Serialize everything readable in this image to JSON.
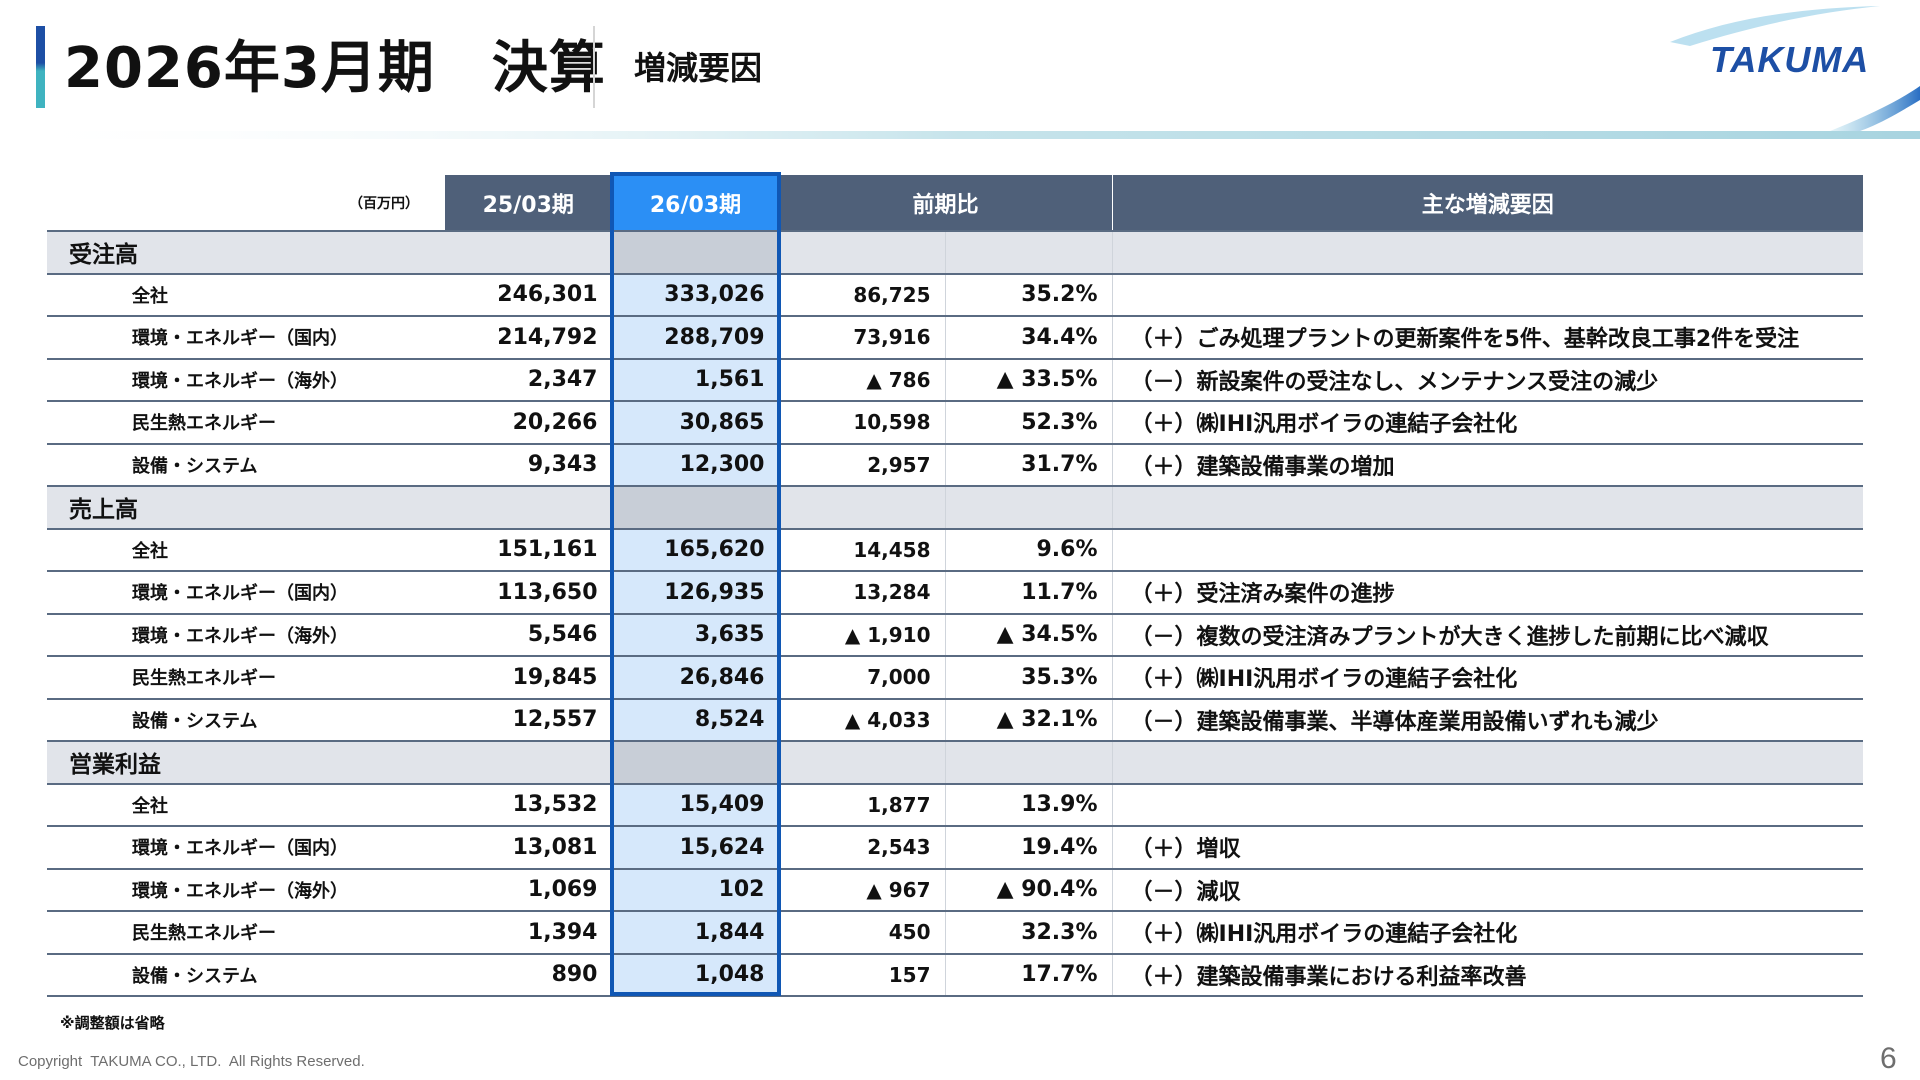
{
  "header": {
    "title": "2026年3月期　決算",
    "subtitle": "増減要因",
    "logo_text": "TAKUMA"
  },
  "table": {
    "unit_label": "（百万円）",
    "columns": {
      "prev": "25/03期",
      "curr": "26/03期",
      "comparison": "前期比",
      "reasons": "主な増減要因"
    },
    "sections": [
      {
        "label": "受注高",
        "rows": [
          {
            "name": "全社",
            "prev": "246,301",
            "curr": "333,026",
            "diff": "86,725",
            "pct": "35.2%",
            "reason": ""
          },
          {
            "name": "環境・エネルギー（国内）",
            "prev": "214,792",
            "curr": "288,709",
            "diff": "73,916",
            "pct": "34.4%",
            "reason": "（＋）ごみ処理プラントの更新案件を5件、基幹改良工事2件を受注"
          },
          {
            "name": "環境・エネルギー（海外）",
            "prev": "2,347",
            "curr": "1,561",
            "diff": "▲ 786",
            "pct": "▲ 33.5%",
            "reason": "（－）新設案件の受注なし、メンテナンス受注の減少"
          },
          {
            "name": "民生熱エネルギー",
            "prev": "20,266",
            "curr": "30,865",
            "diff": "10,598",
            "pct": "52.3%",
            "reason": "（＋）㈱IHI汎用ボイラの連結子会社化"
          },
          {
            "name": "設備・システム",
            "prev": "9,343",
            "curr": "12,300",
            "diff": "2,957",
            "pct": "31.7%",
            "reason": "（＋）建築設備事業の増加"
          }
        ]
      },
      {
        "label": "売上高",
        "rows": [
          {
            "name": "全社",
            "prev": "151,161",
            "curr": "165,620",
            "diff": "14,458",
            "pct": "9.6%",
            "reason": ""
          },
          {
            "name": "環境・エネルギー（国内）",
            "prev": "113,650",
            "curr": "126,935",
            "diff": "13,284",
            "pct": "11.7%",
            "reason": "（＋）受注済み案件の進捗"
          },
          {
            "name": "環境・エネルギー（海外）",
            "prev": "5,546",
            "curr": "3,635",
            "diff": "▲ 1,910",
            "pct": "▲ 34.5%",
            "reason": "（－）複数の受注済みプラントが大きく進捗した前期に比べ減収"
          },
          {
            "name": "民生熱エネルギー",
            "prev": "19,845",
            "curr": "26,846",
            "diff": "7,000",
            "pct": "35.3%",
            "reason": "（＋）㈱IHI汎用ボイラの連結子会社化"
          },
          {
            "name": "設備・システム",
            "prev": "12,557",
            "curr": "8,524",
            "diff": "▲ 4,033",
            "pct": "▲ 32.1%",
            "reason": "（－）建築設備事業、半導体産業用設備いずれも減少"
          }
        ]
      },
      {
        "label": "営業利益",
        "rows": [
          {
            "name": "全社",
            "prev": "13,532",
            "curr": "15,409",
            "diff": "1,877",
            "pct": "13.9%",
            "reason": ""
          },
          {
            "name": "環境・エネルギー（国内）",
            "prev": "13,081",
            "curr": "15,624",
            "diff": "2,543",
            "pct": "19.4%",
            "reason": "（＋）増収"
          },
          {
            "name": "環境・エネルギー（海外）",
            "prev": "1,069",
            "curr": "102",
            "diff": "▲ 967",
            "pct": "▲ 90.4%",
            "reason": "（－）減収"
          },
          {
            "name": "民生熱エネルギー",
            "prev": "1,394",
            "curr": "1,844",
            "diff": "450",
            "pct": "32.3%",
            "reason": "（＋）㈱IHI汎用ボイラの連結子会社化"
          },
          {
            "name": "設備・システム",
            "prev": "890",
            "curr": "1,048",
            "diff": "157",
            "pct": "17.7%",
            "reason": "（＋）建築設備事業における利益率改善"
          }
        ]
      }
    ]
  },
  "footer": {
    "note": "※調整額は省略",
    "copyright": "Copyright  TAKUMA CO., LTD.  All Rights Reserved.",
    "page": "6"
  }
}
